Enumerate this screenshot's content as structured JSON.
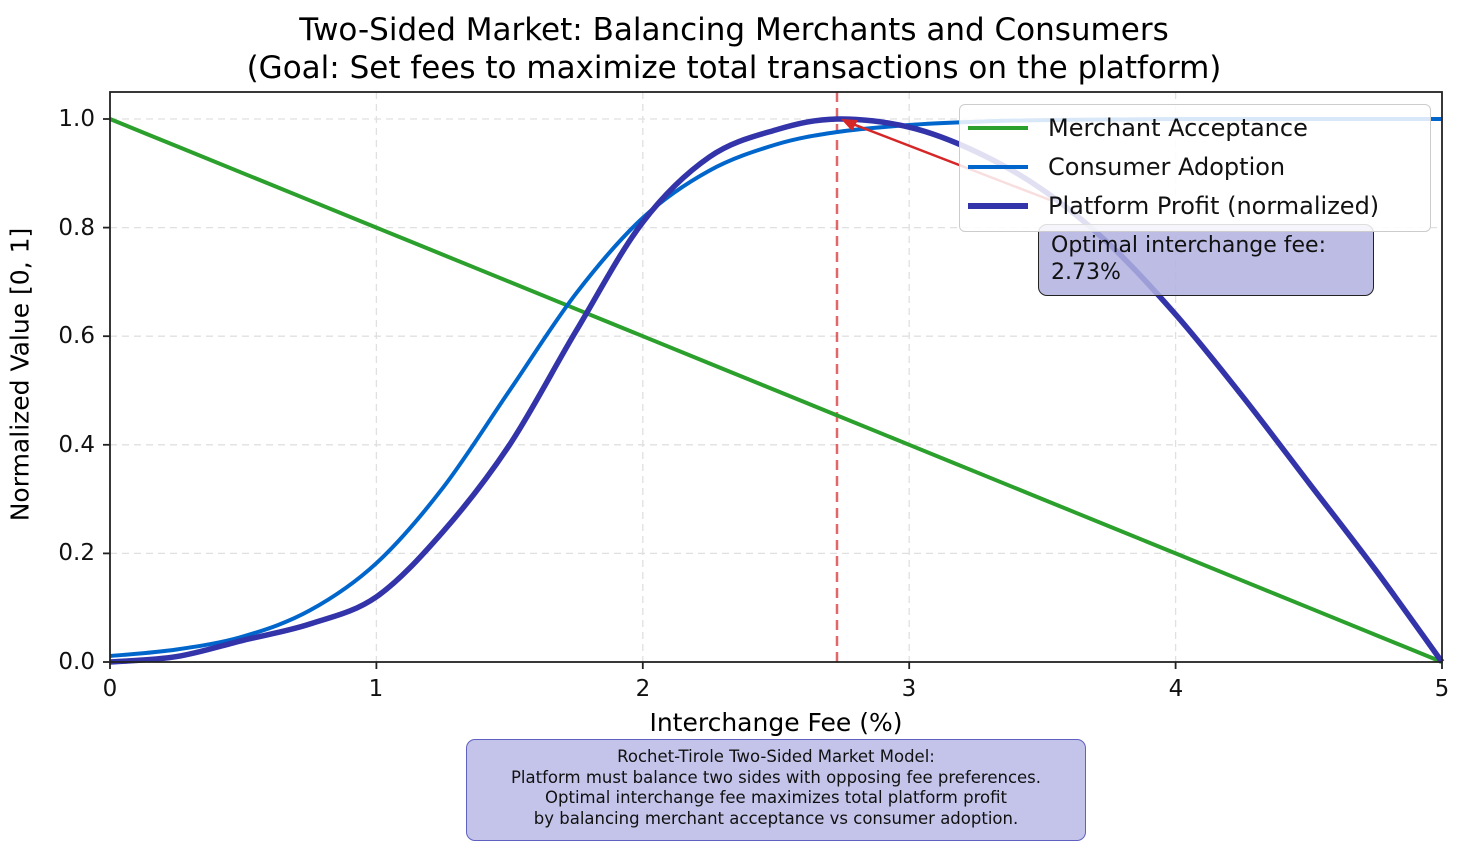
{
  "chart_data": {
    "type": "line",
    "title": "Two-Sided Market: Balancing Merchants and Consumers",
    "subtitle": "(Goal: Set fees to maximize total transactions on the platform)",
    "xlabel": "Interchange Fee (%)",
    "ylabel": "Normalized Value [0, 1]",
    "xlim": [
      0,
      5
    ],
    "ylim": [
      0,
      1.05
    ],
    "x_ticks": [
      "0",
      "1",
      "2",
      "3",
      "4",
      "5"
    ],
    "y_ticks": [
      "0.0",
      "0.2",
      "0.4",
      "0.6",
      "0.8",
      "1.0"
    ],
    "grid": true,
    "legend_position": "upper right",
    "x": [
      0,
      0.25,
      0.5,
      0.75,
      1.0,
      1.25,
      1.5,
      1.75,
      2.0,
      2.25,
      2.5,
      2.73,
      3.0,
      3.25,
      3.5,
      3.75,
      4.0,
      4.25,
      4.5,
      4.75,
      5.0
    ],
    "series": [
      {
        "name": "Merchant Acceptance",
        "color": "#2ca02c",
        "values": [
          1.0,
          0.95,
          0.9,
          0.85,
          0.8,
          0.75,
          0.7,
          0.65,
          0.6,
          0.55,
          0.5,
          0.454,
          0.4,
          0.35,
          0.3,
          0.25,
          0.2,
          0.15,
          0.1,
          0.05,
          0.0
        ]
      },
      {
        "name": "Consumer Adoption",
        "color": "#0066cc",
        "values": [
          0.011,
          0.023,
          0.047,
          0.095,
          0.182,
          0.321,
          0.5,
          0.679,
          0.818,
          0.905,
          0.953,
          0.976,
          0.989,
          0.995,
          0.998,
          0.999,
          1.0,
          1.0,
          1.0,
          1.0,
          1.0
        ]
      },
      {
        "name": "Platform Profit (normalized)",
        "color": "#3333aa",
        "values": [
          0.0,
          0.01,
          0.04,
          0.07,
          0.12,
          0.24,
          0.4,
          0.61,
          0.81,
          0.93,
          0.98,
          1.0,
          0.985,
          0.94,
          0.87,
          0.77,
          0.64,
          0.49,
          0.33,
          0.17,
          0.0
        ]
      }
    ],
    "annotations": [
      {
        "text": "Optimal interchange fee:\n2.73%",
        "xy": [
          2.73,
          1.0
        ],
        "arrow_color": "#d62728"
      },
      {
        "type": "vline",
        "x": 2.73,
        "color": "#d62728",
        "style": "dashed"
      }
    ],
    "footnote": "Rochet-Tirole Two-Sided Market Model:\nPlatform must balance two sides with opposing fee preferences.\nOptimal interchange fee maximizes total platform profit\nby balancing merchant acceptance vs consumer adoption."
  },
  "title": {
    "line1": "Two-Sided Market: Balancing Merchants and Consumers",
    "line2": "(Goal: Set fees to maximize total transactions on the platform)"
  },
  "axes": {
    "xlabel": "Interchange Fee (%)",
    "ylabel": "Normalized Value [0, 1]",
    "x_ticks": [
      "0",
      "1",
      "2",
      "3",
      "4",
      "5"
    ],
    "y_ticks": [
      "0.0",
      "0.2",
      "0.4",
      "0.6",
      "0.8",
      "1.0"
    ]
  },
  "legend": {
    "items": [
      {
        "label": "Merchant Acceptance",
        "color": "#2ca02c"
      },
      {
        "label": "Consumer Adoption",
        "color": "#0066cc"
      },
      {
        "label": "Platform Profit (normalized)",
        "color": "#3333aa"
      }
    ]
  },
  "annotation": {
    "line1": "Optimal interchange fee:",
    "line2": "2.73%"
  },
  "footnote": {
    "line1": "Rochet-Tirole Two-Sided Market Model:",
    "line2": "Platform must balance two sides with opposing fee preferences.",
    "line3": "Optimal interchange fee maximizes total platform profit",
    "line4": "by balancing merchant acceptance vs consumer adoption."
  }
}
